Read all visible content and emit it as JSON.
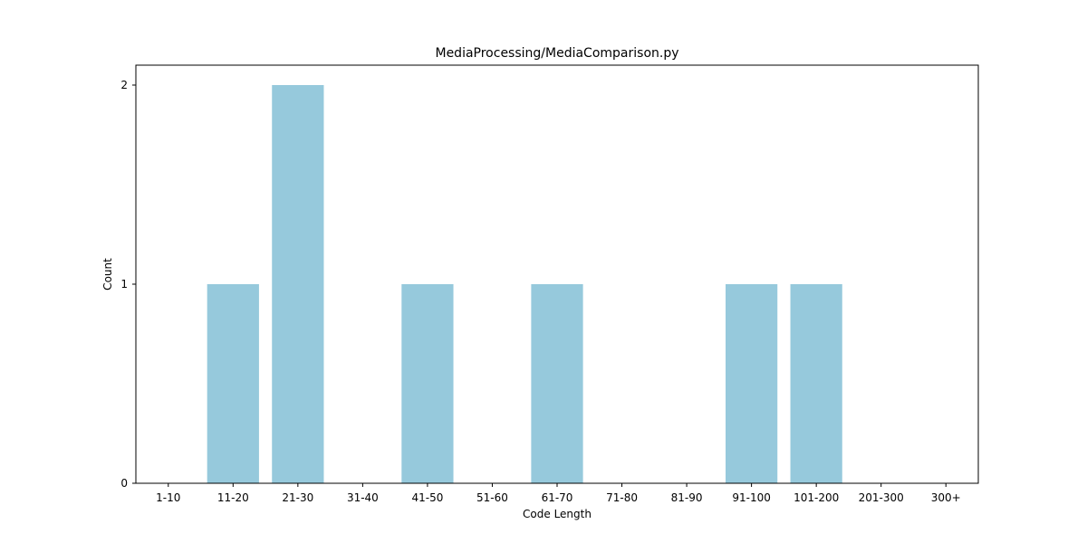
{
  "chart_data": {
    "type": "bar",
    "title": "MediaProcessing/MediaComparison.py",
    "xlabel": "Code Length",
    "ylabel": "Count",
    "categories": [
      "1-10",
      "11-20",
      "21-30",
      "31-40",
      "41-50",
      "51-60",
      "61-70",
      "71-80",
      "81-90",
      "91-100",
      "101-200",
      "201-300",
      "300+"
    ],
    "values": [
      0,
      1,
      2,
      0,
      1,
      0,
      1,
      0,
      0,
      1,
      1,
      0,
      0
    ],
    "ylim": [
      0,
      2.1
    ],
    "yticks": [
      "0",
      "1",
      "2"
    ],
    "bar_color": "#96c9dc",
    "grid": false,
    "legend": "none"
  }
}
